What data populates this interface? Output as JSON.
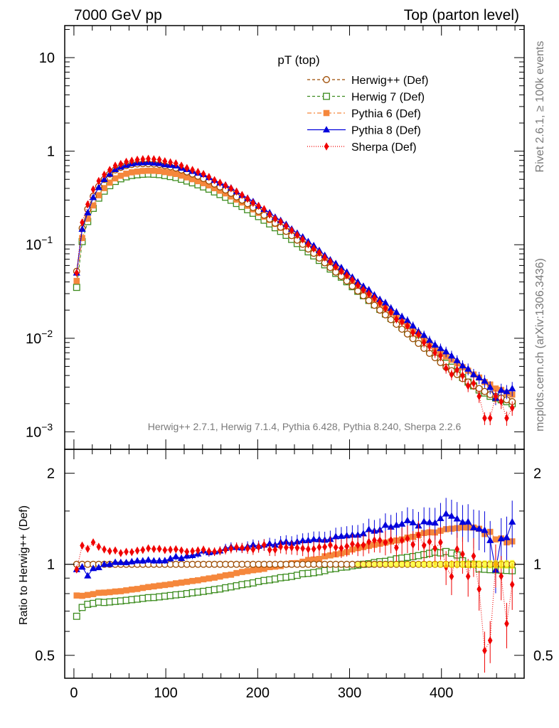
{
  "header": {
    "left": "7000 GeV pp",
    "right": "Top (parton level)"
  },
  "side": {
    "rivet": "Rivet 2.6.1, ≥ 100k events",
    "mcplots": "mcplots.cern.ch (arXiv:1306.3436)"
  },
  "plot_label": "pT (top)",
  "generators_note": "Herwig++ 2.7.1, Herwig 7.1.4, Pythia 6.428, Pythia 8.240, Sherpa 2.2.6",
  "ratio_ylabel": "Ratio to Herwig++ (Def)",
  "legend": [
    {
      "label": "Herwig++ (Def)",
      "color": "#9c4a00",
      "marker": "open-circle",
      "dash": "4,3"
    },
    {
      "label": "Herwig 7 (Def)",
      "color": "#3c8c1e",
      "marker": "open-square",
      "dash": "4,3"
    },
    {
      "label": "Pythia 6 (Def)",
      "color": "#f5873c",
      "marker": "filled-square",
      "dash": "6,3,2,3"
    },
    {
      "label": "Pythia 8 (Def)",
      "color": "#0000dc",
      "marker": "filled-triangle",
      "dash": ""
    },
    {
      "label": "Sherpa (Def)",
      "color": "#f00000",
      "marker": "filled-diamond",
      "dash": "1,2"
    }
  ],
  "main_yticks": [
    {
      "value": 0.001,
      "label": "10",
      "exp": "−3"
    },
    {
      "value": 0.01,
      "label": "10",
      "exp": "−2"
    },
    {
      "value": 0.1,
      "label": "10",
      "exp": "−1"
    },
    {
      "value": 1,
      "label": "1",
      "exp": ""
    },
    {
      "value": 10,
      "label": "10",
      "exp": ""
    }
  ],
  "ratio_yticks": [
    {
      "value": 0.5,
      "label": "0.5"
    },
    {
      "value": 1,
      "label": "1"
    },
    {
      "value": 2,
      "label": "2"
    }
  ],
  "xticks": [
    {
      "value": 0,
      "label": "0"
    },
    {
      "value": 100,
      "label": "100"
    },
    {
      "value": 200,
      "label": "200"
    },
    {
      "value": 300,
      "label": "300"
    },
    {
      "value": 400,
      "label": "400"
    }
  ],
  "chart_data": {
    "type": "scatter",
    "x_range": [
      -10,
      490
    ],
    "main": {
      "y_scale": "log",
      "ylim": [
        0.00065,
        22
      ]
    },
    "ratio": {
      "y_scale": "log",
      "ylim": [
        0.42,
        2.4
      ]
    },
    "x": [
      3,
      9,
      15,
      21,
      27,
      33,
      39,
      45,
      51,
      57,
      63,
      69,
      75,
      81,
      87,
      93,
      99,
      105,
      111,
      117,
      123,
      129,
      135,
      141,
      147,
      153,
      159,
      165,
      171,
      177,
      183,
      189,
      195,
      201,
      207,
      213,
      219,
      225,
      231,
      237,
      243,
      249,
      255,
      261,
      267,
      273,
      279,
      285,
      291,
      297,
      303,
      309,
      315,
      321,
      327,
      333,
      339,
      345,
      351,
      357,
      363,
      369,
      375,
      381,
      387,
      393,
      399,
      405,
      411,
      417,
      423,
      429,
      435,
      441,
      447,
      453,
      459,
      465,
      471,
      477
    ],
    "series": [
      {
        "name": "Herwig++ (Def)",
        "values": [
          0.052,
          0.15,
          0.24,
          0.33,
          0.42,
          0.5,
          0.57,
          0.63,
          0.67,
          0.7,
          0.72,
          0.73,
          0.735,
          0.735,
          0.73,
          0.72,
          0.7,
          0.68,
          0.66,
          0.63,
          0.6,
          0.57,
          0.54,
          0.51,
          0.48,
          0.445,
          0.415,
          0.385,
          0.355,
          0.325,
          0.3,
          0.275,
          0.25,
          0.228,
          0.207,
          0.188,
          0.17,
          0.154,
          0.139,
          0.125,
          0.112,
          0.101,
          0.09,
          0.081,
          0.072,
          0.064,
          0.057,
          0.051,
          0.046,
          0.041,
          0.036,
          0.032,
          0.0285,
          0.0253,
          0.0225,
          0.02,
          0.0178,
          0.0158,
          0.0141,
          0.0125,
          0.0111,
          0.0099,
          0.0088,
          0.0078,
          0.0069,
          0.0062,
          0.0055,
          0.0049,
          0.0045,
          0.0041,
          0.0037,
          0.0034,
          0.0031,
          0.0029,
          0.0027,
          0.0025,
          0.0024,
          0.0023,
          0.0022,
          0.0021
        ]
      },
      {
        "name": "Herwig 7 (Def)",
        "values": [
          0.035,
          0.108,
          0.177,
          0.245,
          0.315,
          0.374,
          0.428,
          0.475,
          0.507,
          0.532,
          0.55,
          0.56,
          0.567,
          0.57,
          0.567,
          0.562,
          0.549,
          0.536,
          0.523,
          0.501,
          0.48,
          0.459,
          0.437,
          0.415,
          0.393,
          0.367,
          0.344,
          0.322,
          0.299,
          0.276,
          0.257,
          0.237,
          0.217,
          0.2,
          0.183,
          0.167,
          0.152,
          0.139,
          0.126,
          0.114,
          0.103,
          0.094,
          0.084,
          0.076,
          0.068,
          0.061,
          0.055,
          0.0494,
          0.045,
          0.0402,
          0.0356,
          0.0318,
          0.0285,
          0.0254,
          0.0228,
          0.0204,
          0.0182,
          0.0163,
          0.0147,
          0.0131,
          0.0117,
          0.0105,
          0.0094,
          0.0084,
          0.0075,
          0.0068,
          0.006,
          0.0054,
          0.0049,
          0.0044,
          0.0038,
          0.0034,
          0.0031,
          0.0028,
          0.0026,
          0.0024,
          0.0023,
          0.0022,
          0.0021,
          0.002
        ]
      },
      {
        "name": "Pythia 6 (Def)",
        "values": [
          0.041,
          0.118,
          0.19,
          0.263,
          0.338,
          0.403,
          0.461,
          0.512,
          0.546,
          0.574,
          0.594,
          0.605,
          0.614,
          0.618,
          0.617,
          0.612,
          0.598,
          0.584,
          0.571,
          0.548,
          0.525,
          0.502,
          0.478,
          0.455,
          0.431,
          0.402,
          0.378,
          0.354,
          0.328,
          0.304,
          0.283,
          0.261,
          0.239,
          0.219,
          0.2,
          0.184,
          0.167,
          0.152,
          0.139,
          0.126,
          0.113,
          0.103,
          0.093,
          0.084,
          0.075,
          0.068,
          0.061,
          0.055,
          0.05,
          0.045,
          0.0403,
          0.0362,
          0.0325,
          0.0291,
          0.0261,
          0.0234,
          0.021,
          0.0188,
          0.0169,
          0.0151,
          0.0136,
          0.0122,
          0.011,
          0.0099,
          0.0088,
          0.0079,
          0.0071,
          0.0064,
          0.0059,
          0.0054,
          0.0049,
          0.0045,
          0.0041,
          0.0038,
          0.0034,
          0.0032,
          0.0029,
          0.0028,
          0.0026,
          0.0025
        ]
      },
      {
        "name": "Pythia 8 (Def)",
        "values": [
          0.05,
          0.147,
          0.22,
          0.32,
          0.41,
          0.5,
          0.57,
          0.64,
          0.68,
          0.71,
          0.735,
          0.75,
          0.755,
          0.76,
          0.75,
          0.74,
          0.72,
          0.71,
          0.7,
          0.66,
          0.64,
          0.61,
          0.585,
          0.565,
          0.525,
          0.49,
          0.46,
          0.435,
          0.405,
          0.37,
          0.34,
          0.315,
          0.29,
          0.262,
          0.24,
          0.22,
          0.197,
          0.182,
          0.165,
          0.147,
          0.133,
          0.121,
          0.108,
          0.098,
          0.087,
          0.077,
          0.069,
          0.063,
          0.057,
          0.051,
          0.045,
          0.04,
          0.036,
          0.033,
          0.029,
          0.026,
          0.024,
          0.021,
          0.019,
          0.017,
          0.0155,
          0.0136,
          0.0118,
          0.0108,
          0.0095,
          0.0085,
          0.0078,
          0.0072,
          0.0065,
          0.0058,
          0.0051,
          0.0047,
          0.0041,
          0.0038,
          0.0035,
          0.003,
          0.0023,
          0.0028,
          0.0027,
          0.0029
        ]
      },
      {
        "name": "Sherpa (Def)",
        "values": [
          0.05,
          0.173,
          0.27,
          0.39,
          0.48,
          0.56,
          0.63,
          0.7,
          0.73,
          0.77,
          0.79,
          0.81,
          0.82,
          0.83,
          0.82,
          0.81,
          0.78,
          0.76,
          0.74,
          0.7,
          0.66,
          0.63,
          0.6,
          0.57,
          0.53,
          0.49,
          0.46,
          0.43,
          0.4,
          0.37,
          0.34,
          0.31,
          0.28,
          0.26,
          0.24,
          0.21,
          0.19,
          0.176,
          0.158,
          0.142,
          0.127,
          0.114,
          0.101,
          0.091,
          0.082,
          0.073,
          0.066,
          0.058,
          0.052,
          0.047,
          0.042,
          0.037,
          0.033,
          0.03,
          0.027,
          0.024,
          0.021,
          0.019,
          0.016,
          0.015,
          0.0135,
          0.0115,
          0.011,
          0.009,
          0.0082,
          0.007,
          0.0065,
          0.0048,
          0.0041,
          0.0046,
          0.004,
          0.0031,
          0.0033,
          0.0024,
          0.0014,
          0.0014,
          0.0024,
          0.0021,
          0.0014,
          0.0018
        ]
      }
    ]
  }
}
